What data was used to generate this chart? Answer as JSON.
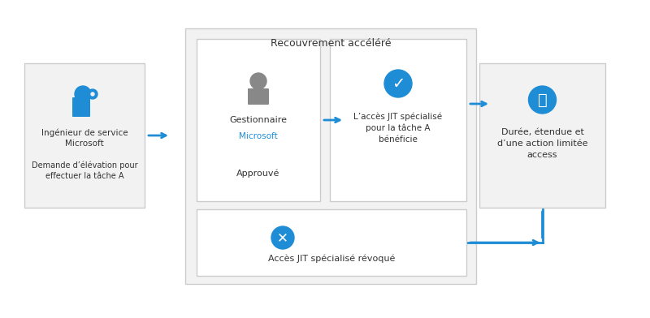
{
  "bg_color": "#ffffff",
  "arrow_color": "#1F8DD6",
  "box_fill": "#f2f2f2",
  "box_edge": "#cccccc",
  "icon_blue": "#1F8DD6",
  "icon_red": "#cc0000",
  "text_color": "#333333",
  "title_large_box": "Recouvrement accéléré",
  "box1_line1": "Ingénieur de service",
  "box1_line2": "Microsoft",
  "box1_line3": "Demande d’élévation pour",
  "box1_line4": "effectuer la tâche A",
  "box2_line1": "Gestionnaire",
  "box2_line2": "Microsoft",
  "box2_line3": "Approuvé",
  "box3_line1": "L’accès JIT spécialisé",
  "box3_line2": "pour la tâche A",
  "box3_line3": "bénéficie",
  "box4_line1": "Durée, étendue et",
  "box4_line2": "d’une action limitée",
  "box4_line3": "access",
  "box5_line1": "Accès JIT spécialisé révoqué"
}
